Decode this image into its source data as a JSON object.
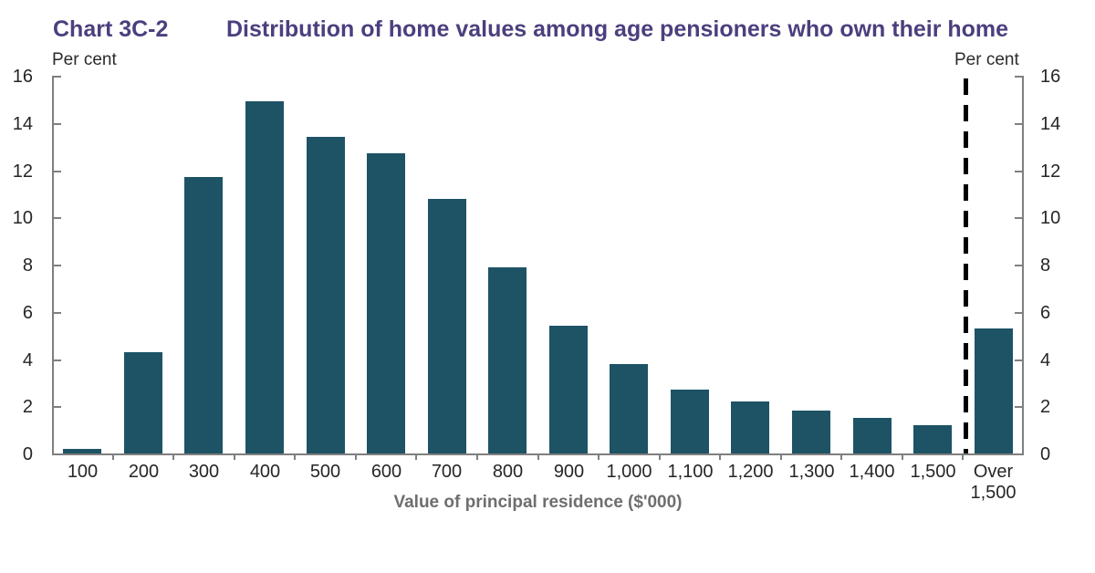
{
  "header": {
    "chart_label": "Chart 3C-2",
    "title": "Distribution of home values among age pensioners who own their home"
  },
  "chart_data": {
    "type": "bar",
    "title": "Distribution of home values among age pensioners who own their home",
    "chart_label": "Chart 3C-2",
    "categories": [
      "100",
      "200",
      "300",
      "400",
      "500",
      "600",
      "700",
      "800",
      "900",
      "1,000",
      "1,100",
      "1,200",
      "1,300",
      "1,400",
      "1,500",
      "Over 1,500"
    ],
    "values": [
      0.2,
      4.3,
      11.7,
      14.9,
      13.4,
      12.7,
      10.8,
      7.9,
      5.4,
      3.8,
      2.7,
      2.2,
      1.8,
      1.5,
      1.2,
      5.3
    ],
    "xlabel": "Value of principal residence ($'000)",
    "ylabel_left": "Per cent",
    "ylabel_right": "Per cent",
    "ylim": [
      0,
      16
    ],
    "yticks": [
      0,
      2,
      4,
      6,
      8,
      10,
      12,
      14,
      16
    ],
    "grid": false,
    "legend": "none",
    "separator": {
      "style": "dashed-vertical-line",
      "position": "before category Over 1,500",
      "color": "#000000"
    },
    "colors": {
      "bar": "#1d5365",
      "title": "#4c3f7e",
      "axis": "#7f7f7f",
      "tick_label": "#262626",
      "axis_title": "#6e6e6e",
      "dashed_line": "#000000",
      "background": "#ffffff"
    }
  }
}
